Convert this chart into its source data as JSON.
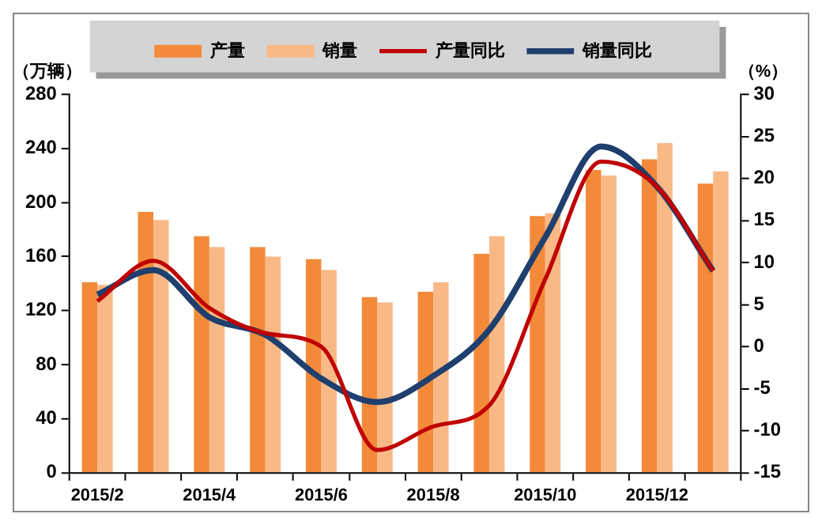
{
  "chart_data": {
    "type": "bar",
    "ylabel": "（万辆）",
    "y2label": "（%）",
    "categories": [
      "2015/2",
      null,
      "2015/4",
      null,
      "2015/6",
      null,
      "2015/8",
      null,
      "2015/10",
      null,
      "2015/12",
      null
    ],
    "series": [
      {
        "name": "产量",
        "color": "#f28a3a",
        "values": [
          141,
          193,
          175,
          167,
          158,
          130,
          134,
          162,
          190,
          224,
          232,
          214
        ]
      },
      {
        "name": "销量",
        "color": "#f9b987",
        "values": [
          139,
          187,
          167,
          160,
          150,
          126,
          141,
          175,
          192,
          220,
          244,
          223
        ]
      },
      {
        "name": "产量同比",
        "type": "line",
        "axis": "y2",
        "color": "#c00000",
        "values": [
          5.4,
          10.2,
          4.6,
          1.6,
          0,
          -12.3,
          -9.5,
          -7,
          8,
          22,
          19,
          9
        ]
      },
      {
        "name": "销量同比",
        "type": "line",
        "axis": "y2",
        "color": "#1f3f6e",
        "values": [
          6.2,
          9.1,
          3.5,
          1.4,
          -3.8,
          -6.6,
          -3.5,
          2,
          13,
          23.8,
          19,
          9
        ]
      }
    ],
    "ylim": [
      0,
      280
    ],
    "yticks": [
      0,
      40,
      80,
      120,
      160,
      200,
      240,
      280
    ],
    "y2lim": [
      -15,
      30
    ],
    "y2ticks": [
      -15,
      -10,
      -5,
      0,
      5,
      10,
      15,
      20,
      25,
      30
    ],
    "legend": "top",
    "grid": false,
    "marker": "none"
  }
}
